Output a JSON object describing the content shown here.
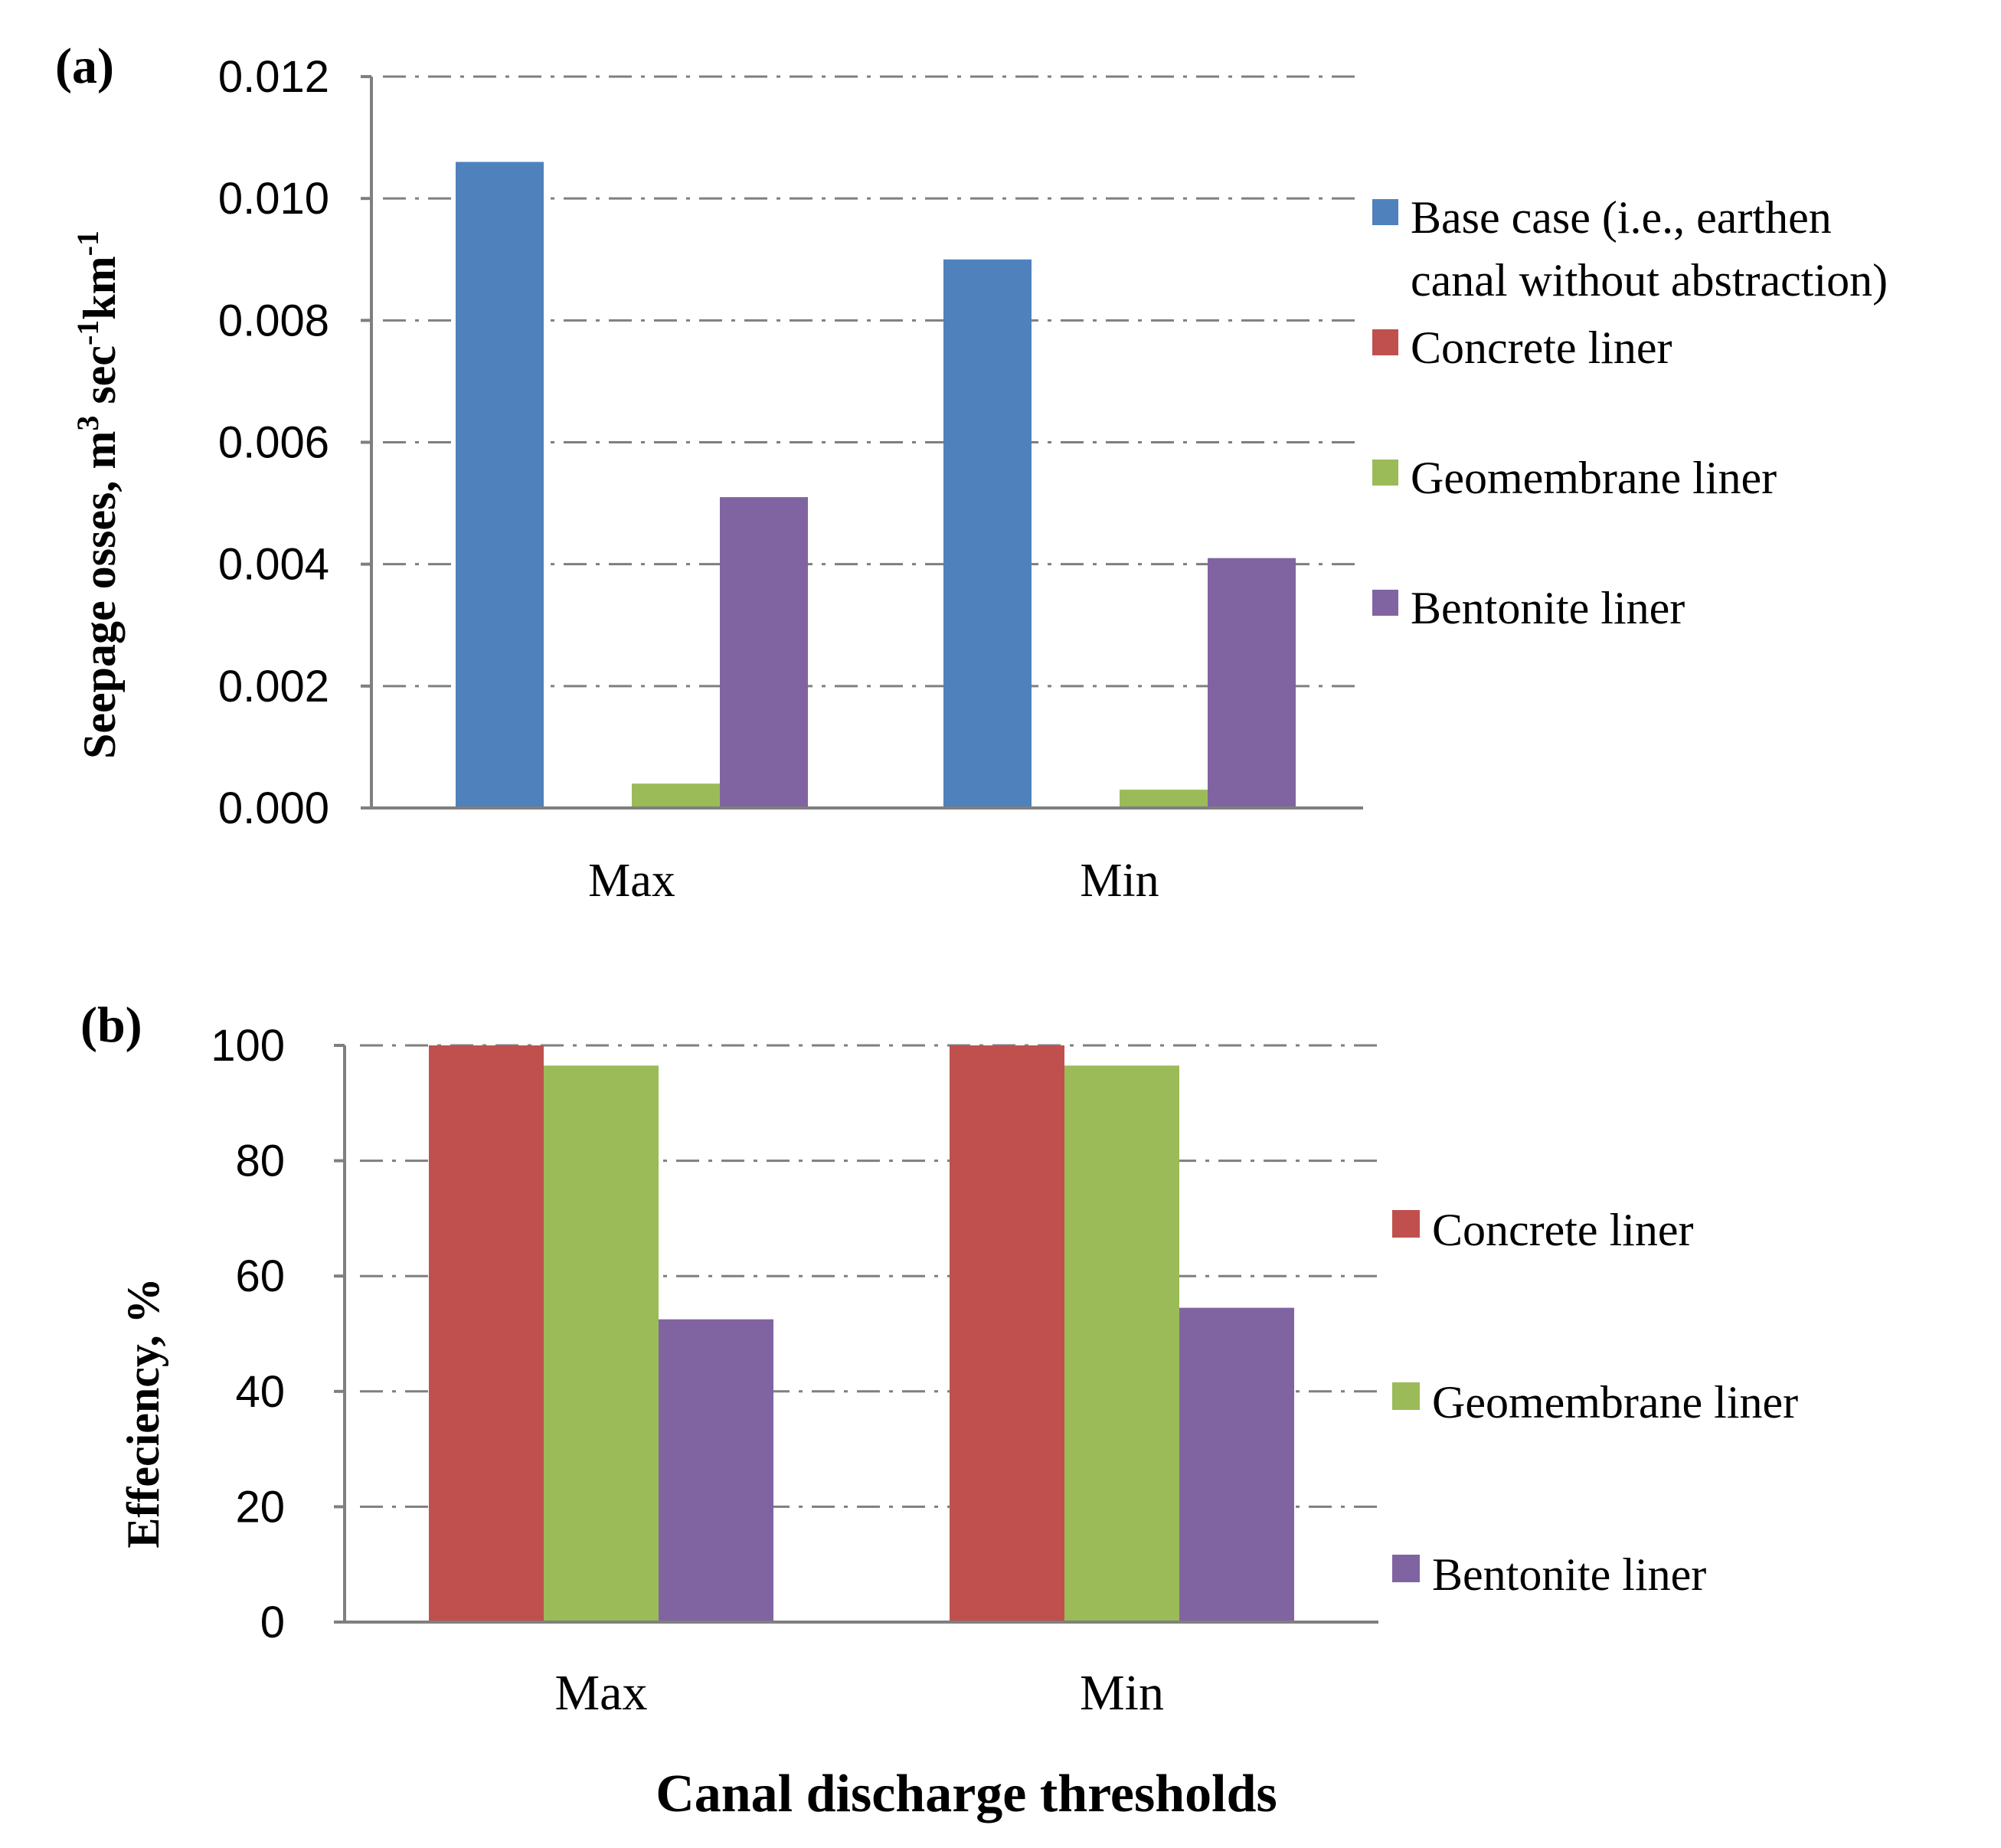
{
  "figure_title": "Canal discharge thresholds",
  "chart_data": [
    {
      "type": "bar",
      "panel_label": "(a)",
      "title": "",
      "xlabel": "",
      "ylabel_parts": [
        "Seepage osses, m",
        "3",
        " sec",
        "-1",
        "km",
        "-1"
      ],
      "categories": [
        "Max",
        "Min"
      ],
      "ylim": [
        0,
        0.012
      ],
      "yticks": [
        "0.000",
        "0.002",
        "0.004",
        "0.006",
        "0.008",
        "0.010",
        "0.012"
      ],
      "ytick_values": [
        0,
        0.002,
        0.004,
        0.006,
        0.008,
        0.01,
        0.012
      ],
      "grid": true,
      "legend_position": "right",
      "series": [
        {
          "name": "Base case (i.e., earthen",
          "name_line2": "canal without abstraction)",
          "color": "#4f81bd",
          "values": [
            0.0106,
            0.009
          ]
        },
        {
          "name": "Concrete liner",
          "color": "#c0504d",
          "values": [
            0.0,
            0.0
          ]
        },
        {
          "name": "Geomembrane liner",
          "color": "#9bbb59",
          "values": [
            0.0004,
            0.0003
          ]
        },
        {
          "name": "Bentonite liner",
          "color": "#8064a2",
          "values": [
            0.0051,
            0.0041
          ]
        }
      ]
    },
    {
      "type": "bar",
      "panel_label": "(b)",
      "title": "",
      "xlabel": "Canal discharge thresholds",
      "ylabel": "Effeciency, %",
      "categories": [
        "Max",
        "Min"
      ],
      "ylim": [
        0,
        100
      ],
      "yticks": [
        "0",
        "20",
        "40",
        "60",
        "80",
        "100"
      ],
      "ytick_values": [
        0,
        20,
        40,
        60,
        80,
        100
      ],
      "grid": true,
      "legend_position": "right",
      "series": [
        {
          "name": "Concrete liner",
          "color": "#c0504d",
          "values": [
            100,
            100
          ]
        },
        {
          "name": "Geomembrane liner",
          "color": "#9bbb59",
          "values": [
            96.5,
            96.5
          ]
        },
        {
          "name": "Bentonite liner",
          "color": "#8064a2",
          "values": [
            52.5,
            54.5
          ]
        }
      ]
    }
  ]
}
